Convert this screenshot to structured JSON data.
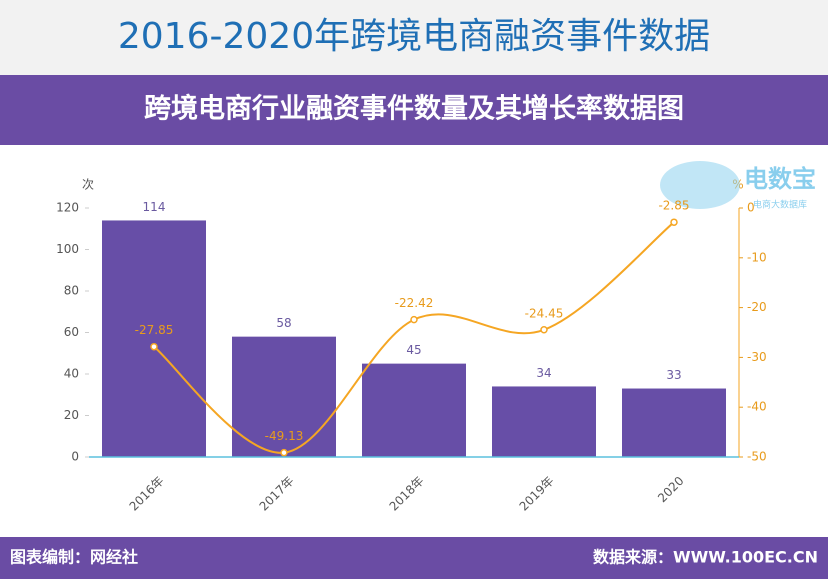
{
  "header": {
    "title": "2016-2020年跨境电商融资事件数据"
  },
  "watermark": {
    "title": "电数宝",
    "subtitle": "电商大数据库"
  },
  "chart_data": {
    "type": "bar",
    "title": "跨境电商行业融资事件数量及其增长率数据图",
    "ylabel": "次",
    "y2label": "%",
    "categories": [
      "2016年",
      "2017年",
      "2018年",
      "2019年",
      "2020"
    ],
    "series": [
      {
        "type": "bar",
        "color": "#674ea7",
        "values": [
          114,
          58,
          45,
          34,
          33
        ]
      },
      {
        "type": "line",
        "axis": "y2",
        "color": "#f5a623",
        "values": [
          -27.85,
          -49.13,
          -22.42,
          -24.45,
          -2.85
        ]
      }
    ],
    "ylim": [
      0,
      120
    ],
    "yticks": [
      0,
      20,
      40,
      60,
      80,
      100,
      120
    ],
    "y2lim": [
      -50,
      0
    ],
    "y2ticks": [
      0,
      -10,
      -20,
      -30,
      -40,
      -50
    ]
  },
  "footer": {
    "left": "图表编制：网经社",
    "right": "数据来源：WWW.100EC.CN"
  }
}
